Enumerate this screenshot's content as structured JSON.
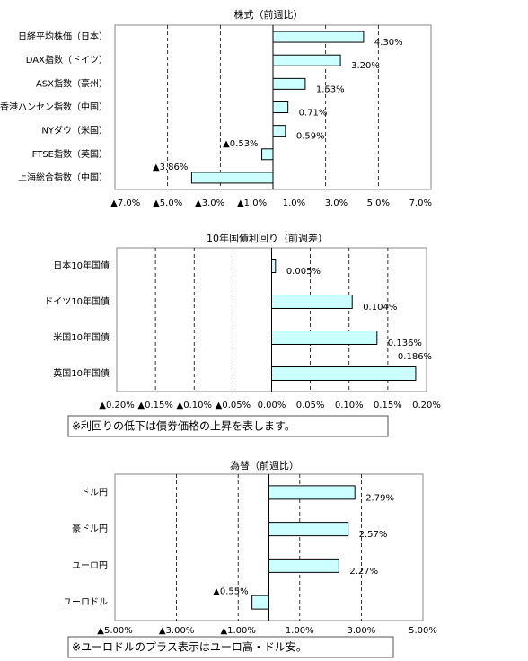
{
  "chart_data": [
    {
      "type": "hbar",
      "title": "株式（前週比）",
      "categories": [
        "日経平均株価（日本）",
        "DAX指数（ドイツ）",
        "ASX指数（豪州）",
        "香港ハンセン指数（中国）",
        "NYダウ（米国）",
        "FTSE指数（英国）",
        "上海総合指数（中国）"
      ],
      "values": [
        4.3,
        3.2,
        1.53,
        0.71,
        0.59,
        -0.53,
        -3.86
      ],
      "value_labels": [
        "4.30%",
        "3.20%",
        "1.53%",
        "0.71%",
        "0.59%",
        "▲0.53%",
        "▲3.86%"
      ],
      "xlim": [
        -7.5,
        7.5
      ],
      "xticks": [
        {
          "value": -7,
          "label": "▲7.0%"
        },
        {
          "value": -5,
          "label": "▲5.0%"
        },
        {
          "value": -3,
          "label": "▲3.0%"
        },
        {
          "value": -1,
          "label": "▲1.0%"
        },
        {
          "value": 1,
          "label": "1.0%"
        },
        {
          "value": 3,
          "label": "3.0%"
        },
        {
          "value": 5,
          "label": "5.0%"
        },
        {
          "value": 7,
          "label": "7.0%"
        }
      ],
      "xgrid": [
        -5,
        -2.5,
        2.5,
        5
      ],
      "color": "#ccffff",
      "negative_color": "#e00000"
    },
    {
      "type": "hbar",
      "title": "10年国債利回り（前週差）",
      "categories": [
        "日本10年国債",
        "ドイツ10年国債",
        "米国10年国債",
        "英国10年国債"
      ],
      "values": [
        0.005,
        0.104,
        0.136,
        0.186
      ],
      "value_labels": [
        "0.005%",
        "0.104%",
        "0.136%",
        "0.186%"
      ],
      "xlim": [
        -0.2,
        0.2
      ],
      "xticks": [
        {
          "value": -0.2,
          "label": "▲0.20%"
        },
        {
          "value": -0.15,
          "label": "▲0.15%"
        },
        {
          "value": -0.1,
          "label": "▲0.10%"
        },
        {
          "value": -0.05,
          "label": "▲0.05%"
        },
        {
          "value": 0,
          "label": "0.00%"
        },
        {
          "value": 0.05,
          "label": "0.05%"
        },
        {
          "value": 0.1,
          "label": "0.10%"
        },
        {
          "value": 0.15,
          "label": "0.15%"
        },
        {
          "value": 0.2,
          "label": "0.20%"
        }
      ],
      "xgrid": [
        -0.15,
        -0.1,
        -0.05,
        0.05,
        0.1,
        0.15
      ],
      "color": "#ccffff",
      "negative_color": "#e00000",
      "note": "※利回りの低下は債券価格の上昇を表します。"
    },
    {
      "type": "hbar",
      "title": "為替（前週比）",
      "categories": [
        "ドル円",
        "豪ドル円",
        "ユーロ円",
        "ユーロドル"
      ],
      "values": [
        2.79,
        2.57,
        2.27,
        -0.55
      ],
      "value_labels": [
        "2.79%",
        "2.57%",
        "2.27%",
        "▲0.55%"
      ],
      "xlim": [
        -5,
        5
      ],
      "xticks": [
        {
          "value": -5,
          "label": "▲5.00%"
        },
        {
          "value": -3,
          "label": "▲3.00%"
        },
        {
          "value": -1,
          "label": "▲1.00%"
        },
        {
          "value": 1,
          "label": "1.00%"
        },
        {
          "value": 3,
          "label": "3.00%"
        },
        {
          "value": 5,
          "label": "5.00%"
        }
      ],
      "xgrid": [
        -3,
        -1,
        1,
        3
      ],
      "color": "#ccffff",
      "negative_color": "#e00000",
      "note": "※ユーロドルのプラス表示はユーロ高・ドル安。"
    }
  ]
}
